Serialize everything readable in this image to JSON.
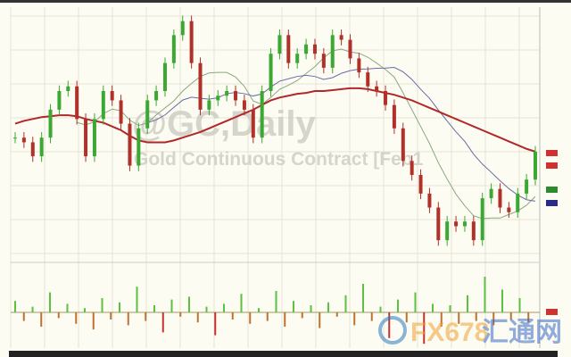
{
  "chart_data": {
    "type": "candlestick",
    "title": "@GC,Daily",
    "subtitle": "Gold Continuous Contract [Feb1",
    "grid": true,
    "closes": [
      1300,
      1295,
      1280,
      1300,
      1330,
      1350,
      1355,
      1320,
      1280,
      1320,
      1350,
      1340,
      1315,
      1270,
      1310,
      1340,
      1350,
      1380,
      1410,
      1425,
      1380,
      1330,
      1340,
      1345,
      1350,
      1340,
      1330,
      1300,
      1350,
      1390,
      1410,
      1380,
      1390,
      1400,
      1390,
      1375,
      1410,
      1405,
      1385,
      1370,
      1355,
      1350,
      1335,
      1310,
      1275,
      1260,
      1240,
      1225,
      1190,
      1210,
      1205,
      1210,
      1190,
      1235,
      1245,
      1225,
      1220,
      1240,
      1255,
      1285
    ],
    "long_moving_average": [
      1315,
      1318,
      1320,
      1322,
      1323,
      1324,
      1324,
      1323,
      1320,
      1318,
      1316,
      1312,
      1308,
      1302,
      1297,
      1295,
      1295,
      1295,
      1297,
      1300,
      1303,
      1306,
      1310,
      1314,
      1318,
      1322,
      1326,
      1330,
      1335,
      1340,
      1343,
      1345,
      1347,
      1348,
      1350,
      1350,
      1351,
      1352,
      1353,
      1353,
      1352,
      1350,
      1348,
      1346,
      1343,
      1340,
      1336,
      1332,
      1328,
      1324,
      1320,
      1316,
      1312,
      1308,
      1304,
      1300,
      1296,
      1292,
      1288,
      1285
    ],
    "ylim": [
      1170,
      1440
    ],
    "colors": {
      "up": "#3aa832",
      "down": "#b0302a",
      "ma_long": "#b02828",
      "ma_mid": "#6a6aa8",
      "ma_short": "#8aa880",
      "tag_red": "#d03030",
      "tag_green": "#2e8a2e",
      "tag_blue": "#2a2a8a"
    },
    "oscillator": [
      8,
      -6,
      4,
      -10,
      14,
      -4,
      6,
      -8,
      3,
      -12,
      10,
      -5,
      7,
      -9,
      18,
      -6,
      5,
      -14,
      9,
      -3,
      11,
      -7,
      4,
      -16,
      6,
      -5,
      13,
      -8,
      3,
      -6,
      15,
      -10,
      8,
      -4,
      5,
      -11,
      7,
      -3,
      12,
      -9,
      20,
      -6,
      4,
      -18,
      9,
      -7,
      14,
      -22,
      6,
      -10,
      5,
      -8,
      12,
      -6,
      25,
      -9,
      16,
      -5,
      10,
      -7
    ]
  },
  "watermark": {
    "logo_latin": "FX678",
    "logo_cjk": "汇通网"
  }
}
